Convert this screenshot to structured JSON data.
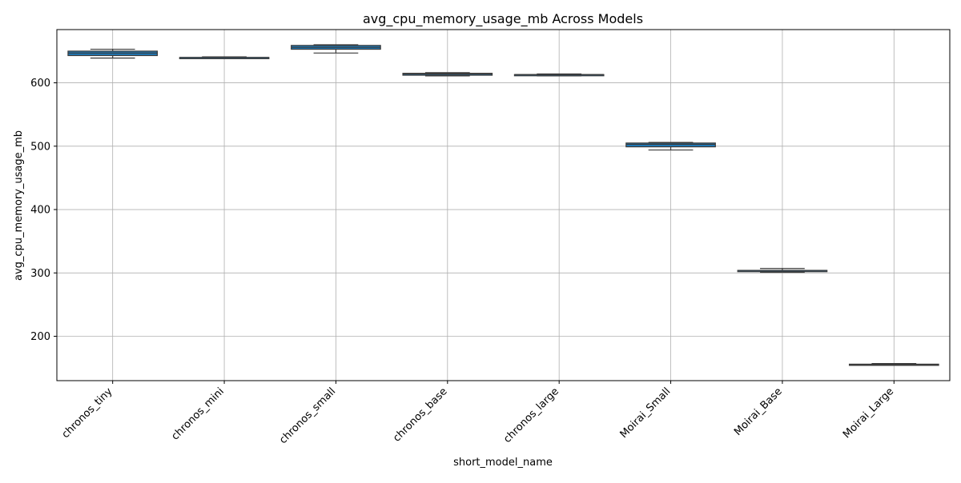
{
  "chart_data": {
    "type": "box",
    "title": "avg_cpu_memory_usage_mb Across Models",
    "xlabel": "short_model_name",
    "ylabel": "avg_cpu_memory_usage_mb",
    "ylim": [
      130,
      684
    ],
    "yticks": [
      200,
      300,
      400,
      500,
      600
    ],
    "grid": true,
    "box_color": "#1f77b4",
    "categories": [
      "chronos_tiny",
      "chronos_mini",
      "chronos_small",
      "chronos_base",
      "chronos_large",
      "Moirai_Small",
      "Moirai_Base",
      "Moirai_Large"
    ],
    "boxes": [
      {
        "min": 639,
        "q1": 643,
        "median": 647,
        "q3": 650,
        "max": 653
      },
      {
        "min": 639,
        "q1": 639,
        "median": 640,
        "q3": 640,
        "max": 641
      },
      {
        "min": 647,
        "q1": 653,
        "median": 656,
        "q3": 659,
        "max": 660
      },
      {
        "min": 611,
        "q1": 612,
        "median": 614,
        "q3": 615,
        "max": 616
      },
      {
        "min": 611,
        "q1": 612,
        "median": 613,
        "q3": 613,
        "max": 614
      },
      {
        "min": 494,
        "q1": 499,
        "median": 503,
        "q3": 505,
        "max": 506
      },
      {
        "min": 301,
        "q1": 302,
        "median": 304,
        "q3": 304,
        "max": 307
      },
      {
        "min": 155,
        "q1": 155,
        "median": 155,
        "q3": 156,
        "max": 157
      }
    ]
  }
}
